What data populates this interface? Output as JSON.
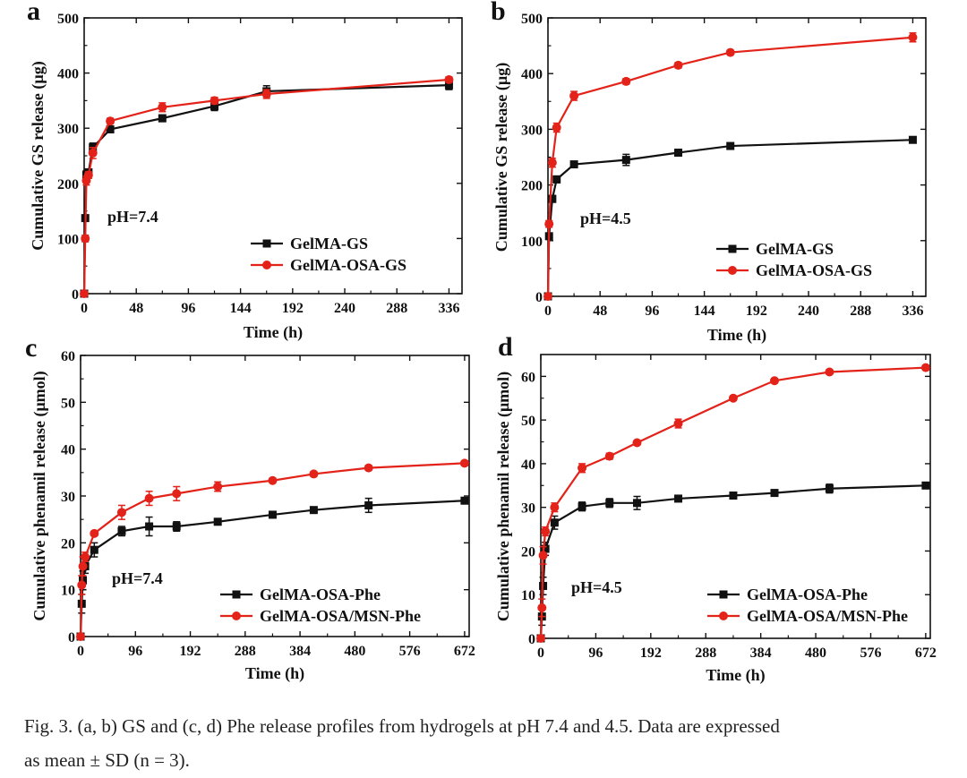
{
  "chart_data": [
    {
      "panel": "a",
      "type": "line",
      "xlabel": "Time (h)",
      "ylabel": "Cumulative GS release (µg)",
      "xlim": [
        0,
        348
      ],
      "ylim": [
        0,
        500
      ],
      "xticks": [
        0,
        48,
        96,
        144,
        192,
        240,
        288,
        336
      ],
      "yticks": [
        0,
        100,
        200,
        300,
        400,
        500
      ],
      "annotation": "pH=7.4",
      "legend_position": "bottom-right",
      "series": [
        {
          "name": "GelMA-GS",
          "color": "#111111",
          "marker": "square",
          "x": [
            0,
            1,
            2,
            4,
            8,
            24,
            72,
            120,
            168,
            336
          ],
          "y": [
            0,
            137,
            215,
            220,
            265,
            298,
            318,
            340,
            367,
            378
          ],
          "err": [
            0,
            5,
            8,
            6,
            8,
            6,
            6,
            8,
            10,
            8
          ]
        },
        {
          "name": "GelMA-OSA-GS",
          "color": "#e32219",
          "marker": "circle",
          "x": [
            0,
            1,
            2,
            4,
            8,
            24,
            72,
            120,
            168,
            336
          ],
          "y": [
            0,
            100,
            205,
            215,
            255,
            313,
            338,
            350,
            362,
            388
          ],
          "err": [
            0,
            6,
            8,
            6,
            10,
            5,
            8,
            6,
            8,
            5
          ]
        }
      ]
    },
    {
      "panel": "b",
      "type": "line",
      "xlabel": "Time (h)",
      "ylabel": "Cumulative GS release (µg)",
      "xlim": [
        0,
        348
      ],
      "ylim": [
        0,
        500
      ],
      "xticks": [
        0,
        48,
        96,
        144,
        192,
        240,
        288,
        336
      ],
      "yticks": [
        0,
        100,
        200,
        300,
        400,
        500
      ],
      "annotation": "pH=4.5",
      "legend_position": "bottom-right",
      "series": [
        {
          "name": "GelMA-GS",
          "color": "#111111",
          "marker": "square",
          "x": [
            0,
            1,
            4,
            8,
            24,
            72,
            120,
            168,
            336
          ],
          "y": [
            0,
            108,
            175,
            210,
            237,
            245,
            258,
            270,
            281
          ],
          "err": [
            0,
            5,
            6,
            6,
            5,
            10,
            5,
            4,
            5
          ]
        },
        {
          "name": "GelMA-OSA-GS",
          "color": "#e32219",
          "marker": "circle",
          "x": [
            0,
            1,
            4,
            8,
            24,
            72,
            120,
            168,
            336
          ],
          "y": [
            0,
            130,
            240,
            303,
            360,
            386,
            415,
            438,
            465
          ],
          "err": [
            0,
            6,
            8,
            8,
            8,
            5,
            5,
            4,
            8
          ]
        }
      ]
    },
    {
      "panel": "c",
      "type": "line",
      "xlabel": "Time (h)",
      "ylabel": "Cumulative phenamil release (μmol)",
      "xlim": [
        0,
        680
      ],
      "ylim": [
        0,
        60
      ],
      "xticks": [
        0,
        96,
        192,
        288,
        384,
        480,
        576,
        672
      ],
      "yticks": [
        0,
        10,
        20,
        30,
        40,
        50,
        60
      ],
      "annotation": "pH=7.4",
      "legend_position": "bottom-right",
      "series": [
        {
          "name": "GelMA-OSA-Phe",
          "color": "#111111",
          "marker": "square",
          "x": [
            0,
            2,
            4,
            8,
            24,
            72,
            120,
            168,
            240,
            336,
            408,
            504,
            672
          ],
          "y": [
            0,
            7,
            12,
            15,
            18.5,
            22.5,
            23.5,
            23.5,
            24.5,
            26,
            27,
            28,
            29
          ],
          "err": [
            0,
            2,
            2,
            1.5,
            1.5,
            1,
            2,
            1,
            0.5,
            0.5,
            0.5,
            1.5,
            0.5
          ]
        },
        {
          "name": "GelMA-OSA/MSN-Phe",
          "color": "#e32219",
          "marker": "circle",
          "x": [
            0,
            2,
            4,
            8,
            24,
            72,
            120,
            168,
            240,
            336,
            408,
            504,
            672
          ],
          "y": [
            0,
            11,
            15,
            17,
            22,
            26.5,
            29.5,
            30.5,
            32,
            33.3,
            34.7,
            36,
            37
          ],
          "err": [
            0,
            2,
            2,
            1,
            0.5,
            1.5,
            1.5,
            1.5,
            1,
            0.5,
            0.5,
            0.5,
            0.5
          ]
        }
      ]
    },
    {
      "panel": "d",
      "type": "line",
      "xlabel": "Time (h)",
      "ylabel": "Cumulative phenamil release (μmol)",
      "xlim": [
        0,
        680
      ],
      "ylim": [
        0,
        65
      ],
      "xticks": [
        0,
        96,
        192,
        288,
        384,
        480,
        576,
        672
      ],
      "yticks": [
        0,
        10,
        20,
        30,
        40,
        50,
        60
      ],
      "annotation": "pH=4.5",
      "legend_position": "bottom-right",
      "series": [
        {
          "name": "GelMA-OSA-Phe",
          "color": "#111111",
          "marker": "square",
          "x": [
            0,
            2,
            4,
            8,
            24,
            72,
            120,
            168,
            240,
            336,
            408,
            504,
            672
          ],
          "y": [
            0,
            5,
            12,
            20.5,
            26.5,
            30.2,
            31,
            31,
            32,
            32.7,
            33.3,
            34.3,
            35
          ],
          "err": [
            0,
            2,
            2,
            1.5,
            1.5,
            1,
            1,
            1.5,
            0.5,
            0.5,
            0.5,
            1,
            0.5
          ]
        },
        {
          "name": "GelMA-OSA/MSN-Phe",
          "color": "#e32219",
          "marker": "circle",
          "x": [
            0,
            2,
            4,
            8,
            24,
            72,
            120,
            168,
            240,
            336,
            408,
            504,
            672
          ],
          "y": [
            0,
            7,
            19,
            24.5,
            30,
            39,
            41.7,
            44.8,
            49.2,
            55,
            59,
            61,
            62
          ],
          "err": [
            0,
            2,
            2,
            1,
            1,
            1,
            0.7,
            0.5,
            1,
            0.5,
            0.5,
            0.5,
            0.5
          ]
        }
      ]
    }
  ],
  "caption": {
    "line1": "Fig. 3. (a, b) GS and (c, d) Phe release profiles from hydrogels at pH 7.4 and 4.5. Data are expressed",
    "line2": "as mean ± SD (n = 3)."
  }
}
